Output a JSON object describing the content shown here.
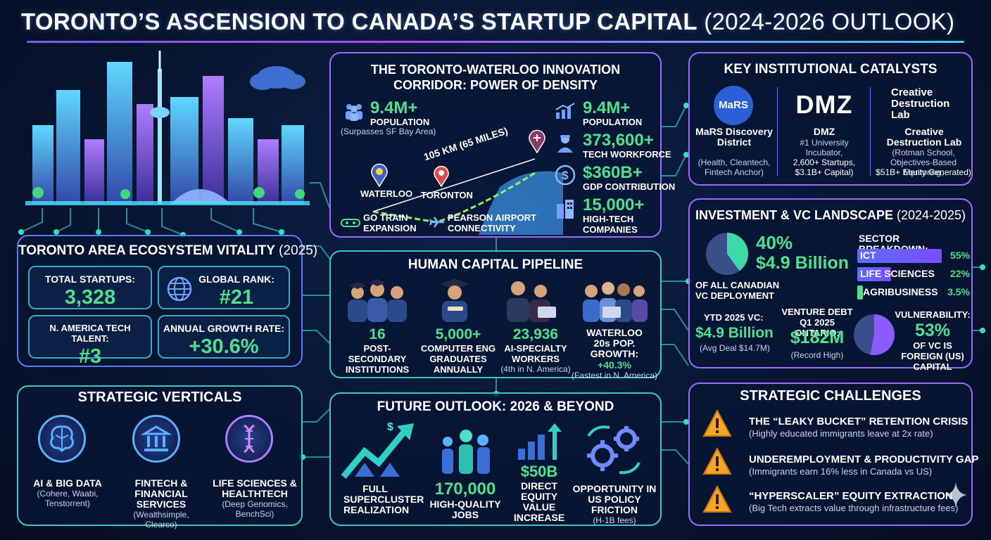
{
  "title": {
    "main": "TORONTO’S ASCENSION TO CANADA’S STARTUP CAPITAL",
    "sub": " (2024-2026 OUTLOOK)"
  },
  "colors": {
    "accent_green": "#4de08d",
    "teal": "#3ec7c0",
    "purple": "#9b6cff",
    "background": "#081632"
  },
  "corridor": {
    "heading_line1": "THE TORONTO-WATERLOO INNOVATION",
    "heading_line2": "CORRIDOR: POWER OF DENSITY",
    "left_stat": {
      "value": "9.4M+",
      "label": "POPULATION",
      "note": "(Surpasses SF Bay Area)",
      "icon": "people-icon"
    },
    "distance": "105 KM (65 MILES)",
    "city_waterloo": "WATERLOO",
    "city_toronto": "TORONTON",
    "go_train": "GO TRAIN EXPANSION",
    "airport": "PEARSON AIRPORT CONNECTIVITY",
    "stats": [
      {
        "value": "9.4M+",
        "label": "POPULATION",
        "icon": "growth-chart-icon"
      },
      {
        "value": "373,600+",
        "label": "TECH WORKFORCE",
        "icon": "worker-icon"
      },
      {
        "value": "$360B+",
        "label": "GDP CONTRIBUTION",
        "icon": "dollar-icon"
      },
      {
        "value": "15,000+",
        "label": "HIGH-TECH COMPANIES",
        "icon": "building-icon"
      }
    ]
  },
  "catalysts": {
    "heading": "KEY INSTITUTIONAL CATALYSTS",
    "items": [
      {
        "logo": "MaRS",
        "name": "MaRS Discovery District",
        "desc": "(Health, Cleantech, Fintech Anchor)"
      },
      {
        "logo": "DMZ",
        "name": "DMZ",
        "desc1": "#1 University Incubator,",
        "desc2": "2,600+ Startups, $3.1B+ Capital)"
      },
      {
        "logo": "Creative Destruction Lab",
        "name": "Creative Destruction Lab",
        "desc1": "(Rotman School, Objectives-Based Mentoring,",
        "desc2": "$51B+ Equity Generated)"
      }
    ]
  },
  "vitality": {
    "heading": "TORONTO AREA ECOSYSTEM VITALITY",
    "year": " (2025)",
    "cards": [
      {
        "label": "TOTAL STARTUPS:",
        "value": "3,328"
      },
      {
        "label": "GLOBAL RANK:",
        "value": "#21",
        "icon": "globe-icon"
      },
      {
        "label": "N. AMERICA TECH TALENT:",
        "value": "#3"
      },
      {
        "label": "ANNUAL GROWTH RATE:",
        "value": "+30.6%"
      }
    ]
  },
  "investment": {
    "heading": "INVESTMENT & VC LANDSCAPE",
    "year": " (2024-2025)",
    "share": "40%",
    "amount": "$4.9 Billion",
    "share_label": "OF ALL CANADIAN VC DEPLOYMENT",
    "sector_heading": "SECTOR BREAKDOWN:",
    "sectors": [
      {
        "name": "ICT",
        "pct": "55%",
        "value": 55
      },
      {
        "name": "LIFE SCIENCES",
        "pct": "22%",
        "value": 22
      },
      {
        "name": "AGRIBUSINESS",
        "pct": "3.5%",
        "value": 3.5
      }
    ],
    "ytd_label": "YTD 2025 VC:",
    "ytd_value": "$4.9 Billion",
    "ytd_note": "(Avg Deal $14.7M)",
    "debt_label": "VENTURE DEBT Q1 2025 ONTARIO:",
    "debt_value": "$182M",
    "debt_note": "(Record High)",
    "vuln_label": "VULNERABILITY:",
    "vuln_value": "53%",
    "vuln_note": "OF VC IS FOREIGN (US) CAPITAL"
  },
  "human": {
    "heading": "HUMAN CAPITAL PIPELINE",
    "items": [
      {
        "value": "16",
        "label": "POST-SECONDARY INSTITUTIONS",
        "note": ""
      },
      {
        "value": "5,000+",
        "label": "COMPUTER ENG GRADUATES ANNUALLY",
        "note": ""
      },
      {
        "value": "23,936",
        "label": "AI-SPECIALTY WORKERS",
        "note": "(4th in N. America)"
      },
      {
        "value": "+40.3%",
        "label": "WATERLOO 20s POP. GROWTH:",
        "note": "(Fastest in N. America)"
      }
    ]
  },
  "verticals": {
    "heading": "STRATEGIC VERTICALS",
    "items": [
      {
        "icon": "brain-icon",
        "title": "AI & BIG DATA",
        "desc": "(Cohere, Waabi, Tenstorrent)"
      },
      {
        "icon": "bank-icon",
        "title": "FINTECH & FINANCIAL SERVICES",
        "desc": "(Wealthsimple, Clearco)"
      },
      {
        "icon": "dna-icon",
        "title": "LIFE SCIENCES & HEALTHTECH",
        "desc": "(Deep Genomics, BenchSci)"
      }
    ]
  },
  "outlook": {
    "heading": "FUTURE OUTLOOK: 2026 & BEYOND",
    "items": [
      {
        "icon": "rising-arrow-icon",
        "value": "",
        "label": "FULL SUPERCLUSTER REALIZATION"
      },
      {
        "icon": "people-icon",
        "value": "170,000",
        "label": "HIGH-QUALITY JOBS"
      },
      {
        "icon": "bar-chart-icon",
        "value": "$50B",
        "label": "DIRECT EQUITY VALUE INCREASE"
      },
      {
        "icon": "gears-icon",
        "value": "",
        "label": "OPPORTUNITY IN US POLICY FRICTION",
        "note": "(H-1B fees)"
      }
    ]
  },
  "challenges": {
    "heading": "STRATEGIC CHALLENGES",
    "items": [
      {
        "title": "THE “LEAKY BUCKET” RETENTION CRISIS",
        "desc": "(Highly educated immigrants leave at 2x rate)"
      },
      {
        "title": "UNDEREMPLOYMENT & PRODUCTIVITY GAP",
        "desc": "(Immigrants earn 16% less in Canada vs US)"
      },
      {
        "title": "“HYPERSCALER” EQUITY EXTRACTION",
        "desc": "(Big Tech extracts value through infrastructure fees)"
      }
    ]
  }
}
